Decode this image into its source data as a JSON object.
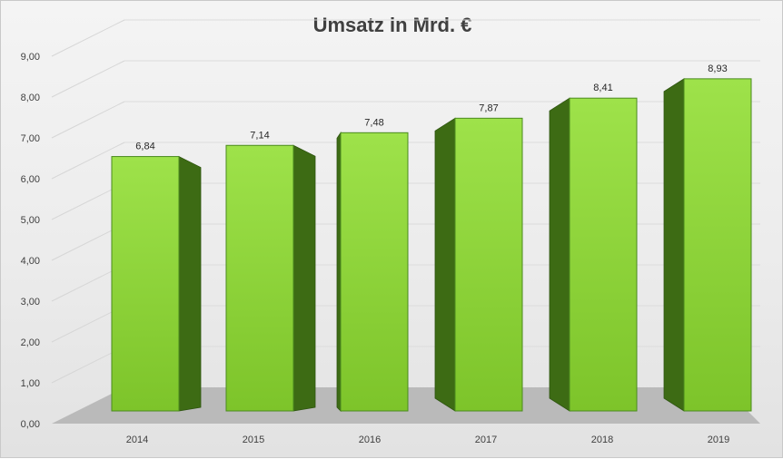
{
  "chart_data": {
    "type": "bar",
    "title": "Umsatz in Mrd.  €",
    "xlabel": "",
    "ylabel": "",
    "categories": [
      "2014",
      "2015",
      "2016",
      "2017",
      "2018",
      "2019"
    ],
    "values": [
      6.84,
      7.14,
      7.48,
      7.87,
      8.41,
      8.93
    ],
    "data_labels": [
      "6,84",
      "7,14",
      "7,48",
      "7,87",
      "8,41",
      "8,93"
    ],
    "y_ticks": [
      "0,00",
      "1,00",
      "2,00",
      "3,00",
      "4,00",
      "5,00",
      "6,00",
      "7,00",
      "8,00",
      "9,00"
    ],
    "ylim": [
      0,
      9
    ],
    "grid": true,
    "legend": "none",
    "style": "3d-column",
    "colors": {
      "bar_front": "#7dc42a",
      "bar_front_light": "#9ee24a",
      "bar_side": "#3d6b14",
      "bar_edge": "#4a8a1e",
      "floor": "#b5b5b5"
    }
  }
}
